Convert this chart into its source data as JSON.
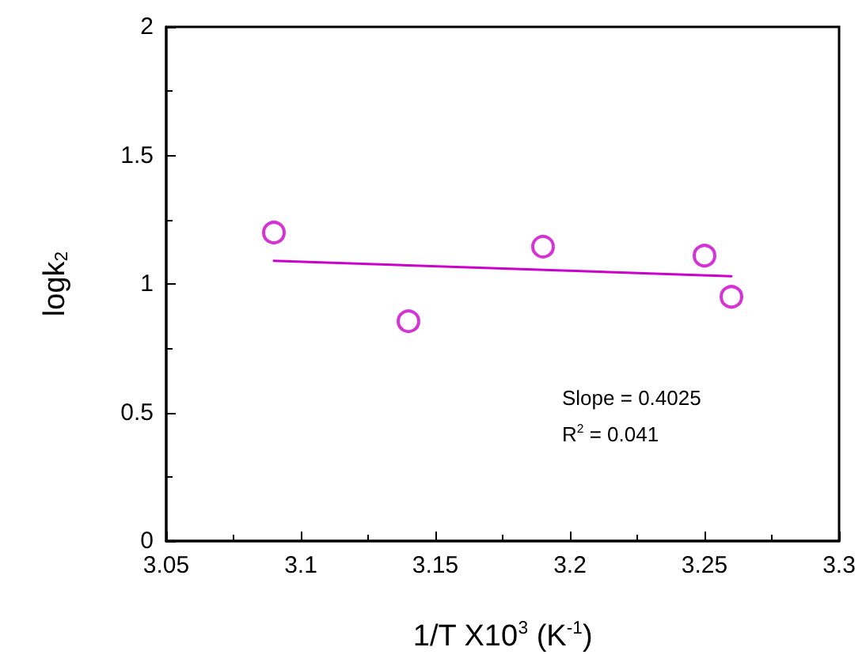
{
  "chart_data": {
    "type": "scatter",
    "xlabel": "1/T X10$^{3}$ (K$^{-1}$)",
    "ylabel": "logk$_{2}$",
    "series": [
      {
        "color": "#cc00cc",
        "marker": "circle",
        "x": [
          3.09,
          3.14,
          3.19,
          3.25,
          3.26
        ],
        "values": [
          1.2,
          0.855,
          1.145,
          1.11,
          0.95
        ]
      },
      {
        "type": "line",
        "color": "#cc00cc",
        "marker": "none",
        "line_style": "solid",
        "x": [
          3.09,
          3.26
        ],
        "values": [
          1.09,
          1.03
        ]
      }
    ],
    "xlim": [
      3.05,
      3.3
    ],
    "xticks": [
      3.05,
      3.1,
      3.15,
      3.2,
      3.25,
      3.3
    ],
    "ylim": [
      0,
      2
    ],
    "yticks": [
      0,
      0.5,
      1,
      1.5,
      2
    ],
    "annotations": [
      "Slope = 0.4025",
      "R$^{2}$ = 0.041"
    ],
    "grid": false
  }
}
